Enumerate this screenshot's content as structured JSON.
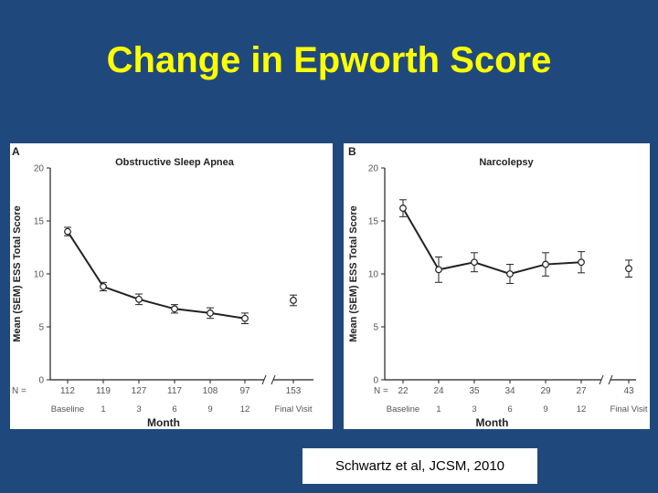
{
  "slide": {
    "title": "Change in Epworth Score",
    "citation": "Schwartz et al, JCSM, 2010"
  },
  "colors": {
    "background": "#1f497d",
    "title": "#ffff00",
    "panel": "#ffffff",
    "ink": "#222222",
    "tick_text": "#555555"
  },
  "chart_data": [
    {
      "type": "line",
      "panel_letter": "A",
      "title": "Obstructive Sleep Apnea",
      "ylabel": "Mean (SEM) ESS Total Score",
      "xlabel": "Month",
      "ylim": [
        0,
        20
      ],
      "yticks": [
        0,
        5,
        10,
        15,
        20
      ],
      "n_prefix": "N =",
      "categories": [
        "Baseline",
        "1",
        "3",
        "6",
        "9",
        "12",
        "Final Visit"
      ],
      "n_values": [
        "112",
        "119",
        "127",
        "117",
        "108",
        "97",
        "153"
      ],
      "values": [
        14.0,
        8.8,
        7.6,
        6.7,
        6.3,
        5.8,
        7.5
      ],
      "sem": [
        0.4,
        0.4,
        0.5,
        0.4,
        0.5,
        0.5,
        0.5
      ],
      "connected_points": 6
    },
    {
      "type": "line",
      "panel_letter": "B",
      "title": "Narcolepsy",
      "ylabel": "Mean (SEM) ESS Total Score",
      "xlabel": "Month",
      "ylim": [
        0,
        20
      ],
      "yticks": [
        0,
        5,
        10,
        15,
        20
      ],
      "n_prefix": "N =",
      "categories": [
        "Baseline",
        "1",
        "3",
        "6",
        "9",
        "12",
        "Final Visit"
      ],
      "n_values": [
        "22",
        "24",
        "35",
        "34",
        "29",
        "27",
        "43"
      ],
      "values": [
        16.2,
        10.4,
        11.1,
        10.0,
        10.9,
        11.1,
        10.5
      ],
      "sem": [
        0.8,
        1.2,
        0.9,
        0.9,
        1.1,
        1.0,
        0.8
      ],
      "connected_points": 6
    }
  ]
}
